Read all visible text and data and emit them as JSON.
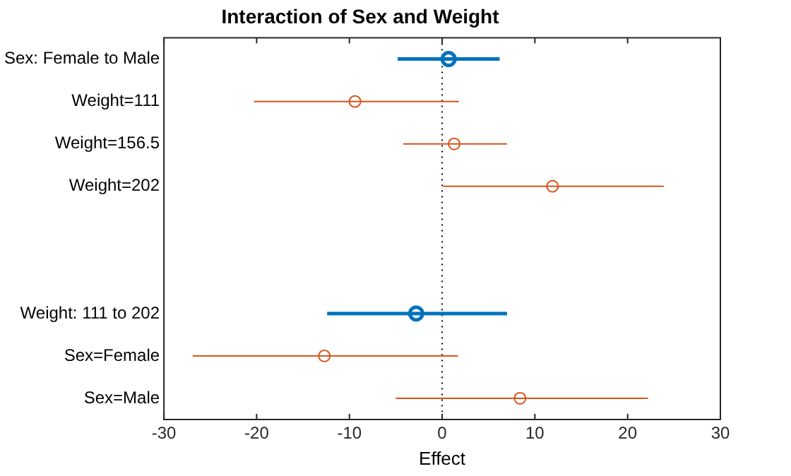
{
  "chart_data": {
    "type": "scatter",
    "orientation": "horizontal",
    "title": "Interaction of Sex and Weight",
    "xlabel": "Effect",
    "categories": [
      "Sex: Female to Male",
      "Weight=111",
      "Weight=156.5",
      "Weight=202",
      null,
      null,
      "Weight: 111 to 202",
      "Sex=Female",
      "Sex=Male"
    ],
    "xlim": [
      -30,
      30
    ],
    "xticks": [
      -30,
      -20,
      -10,
      0,
      10,
      20,
      30
    ],
    "grid": false,
    "legend": false,
    "marker": "circle",
    "series": [
      {
        "color": "#0072bd",
        "values": [
          0.7,
          null,
          null,
          null,
          null,
          null,
          -2.8,
          null,
          null
        ],
        "errors": [
          [
            -4.8,
            6.2
          ],
          null,
          null,
          null,
          null,
          null,
          [
            -12.4,
            7.0
          ],
          null,
          null
        ]
      },
      {
        "color": "#d95319",
        "values": [
          null,
          -9.4,
          1.3,
          11.9,
          null,
          null,
          null,
          -12.7,
          8.4
        ],
        "errors": [
          null,
          [
            -20.3,
            1.8
          ],
          [
            -4.2,
            7.0
          ],
          [
            0.1,
            23.9
          ],
          null,
          null,
          null,
          [
            -26.9,
            1.7
          ],
          [
            -5.0,
            22.2
          ]
        ]
      }
    ],
    "ref_lines": [
      {
        "axis": "x",
        "value": 0,
        "color": "#000000",
        "line_style": "dotted"
      }
    ]
  }
}
